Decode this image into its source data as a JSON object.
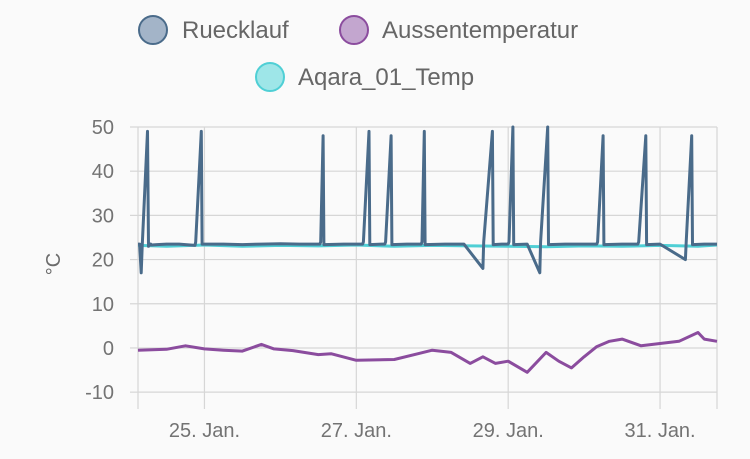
{
  "chart_data": {
    "type": "line",
    "ylabel": "°C",
    "ylim": [
      -12,
      50
    ],
    "yticks": [
      50,
      40,
      30,
      20,
      10,
      0,
      -10
    ],
    "xlim": [
      "2023-01-24T03:00",
      "2023-01-31T18:00"
    ],
    "xticks": [
      {
        "date": "2023-01-25",
        "label": "25. Jan."
      },
      {
        "date": "2023-01-27",
        "label": "27. Jan."
      },
      {
        "date": "2023-01-29",
        "label": "29. Jan."
      },
      {
        "date": "2023-01-31",
        "label": "31. Jan."
      }
    ],
    "grid": true,
    "legend_position": "top",
    "series": [
      {
        "name": "Ruecklauf",
        "color": "#4a6b8a",
        "fill": "#a3b4c8",
        "x": [
          "2023-01-24T03:00",
          "2023-01-24T03:30",
          "2023-01-24T04:00",
          "2023-01-24T04:20",
          "2023-01-24T06:00",
          "2023-01-24T06:20",
          "2023-01-24T07:00",
          "2023-01-24T07:15",
          "2023-01-24T09:00",
          "2023-01-24T12:00",
          "2023-01-24T16:00",
          "2023-01-24T21:00",
          "2023-01-24T21:15",
          "2023-01-24T23:00",
          "2023-01-24T23:15",
          "2023-01-25T06:00",
          "2023-01-25T12:00",
          "2023-01-25T18:00",
          "2023-01-26T00:00",
          "2023-01-26T06:00",
          "2023-01-26T12:30",
          "2023-01-26T12:45",
          "2023-01-26T13:30",
          "2023-01-26T13:45",
          "2023-01-26T20:00",
          "2023-01-27T02:00",
          "2023-01-27T02:15",
          "2023-01-27T04:00",
          "2023-01-27T04:15",
          "2023-01-27T08:00",
          "2023-01-27T09:00",
          "2023-01-27T09:15",
          "2023-01-27T11:00",
          "2023-01-27T11:15",
          "2023-01-27T16:00",
          "2023-01-27T20:30",
          "2023-01-27T20:45",
          "2023-01-27T21:30",
          "2023-01-27T21:45",
          "2023-01-28T04:00",
          "2023-01-28T10:00",
          "2023-01-28T16:00",
          "2023-01-28T16:15",
          "2023-01-28T19:00",
          "2023-01-28T19:15",
          "2023-01-28T22:00",
          "2023-01-29T00:00",
          "2023-01-29T00:15",
          "2023-01-29T01:30",
          "2023-01-29T01:45",
          "2023-01-29T06:00",
          "2023-01-29T10:00",
          "2023-01-29T10:15",
          "2023-01-29T12:30",
          "2023-01-29T12:45",
          "2023-01-29T18:00",
          "2023-01-30T00:00",
          "2023-01-30T04:00",
          "2023-01-30T04:15",
          "2023-01-30T06:00",
          "2023-01-30T06:15",
          "2023-01-30T12:00",
          "2023-01-30T17:00",
          "2023-01-30T17:15",
          "2023-01-30T19:30",
          "2023-01-30T19:45",
          "2023-01-31T00:00",
          "2023-01-31T08:00",
          "2023-01-31T08:15",
          "2023-01-31T10:00",
          "2023-01-31T10:15",
          "2023-01-31T14:00",
          "2023-01-31T18:00"
        ],
        "y": [
          23.5,
          23.5,
          17,
          23,
          49,
          23,
          23.5,
          23.3,
          23.4,
          23.5,
          23.5,
          23.2,
          24,
          49,
          23.5,
          23.5,
          23.4,
          23.5,
          23.6,
          23.5,
          23.5,
          24,
          48,
          23.4,
          23.5,
          23.5,
          24,
          49,
          23.4,
          23.5,
          23.5,
          24,
          48,
          23.4,
          23.5,
          23.5,
          24,
          49,
          23.4,
          23.5,
          23.5,
          18,
          24,
          49,
          23.4,
          23.5,
          23.5,
          24,
          50,
          23.4,
          23.5,
          17,
          24,
          50,
          23.4,
          23.5,
          23.5,
          23.5,
          24,
          48,
          23.4,
          23.5,
          23.5,
          24,
          48,
          23.4,
          23.5,
          20,
          24,
          48,
          23.4,
          23.5,
          23.5
        ]
      },
      {
        "name": "Aussentemperatur",
        "color": "#8b4c9e",
        "fill": "#c3a6cf",
        "x": [
          "2023-01-24T03:00",
          "2023-01-24T12:00",
          "2023-01-24T18:00",
          "2023-01-25T00:00",
          "2023-01-25T06:00",
          "2023-01-25T12:00",
          "2023-01-25T18:00",
          "2023-01-25T22:00",
          "2023-01-26T04:00",
          "2023-01-26T12:00",
          "2023-01-26T16:00",
          "2023-01-27T00:00",
          "2023-01-27T12:00",
          "2023-01-27T20:00",
          "2023-01-28T00:00",
          "2023-01-28T06:00",
          "2023-01-28T12:00",
          "2023-01-28T16:00",
          "2023-01-28T20:00",
          "2023-01-29T00:00",
          "2023-01-29T06:00",
          "2023-01-29T12:00",
          "2023-01-29T16:00",
          "2023-01-29T20:00",
          "2023-01-30T00:00",
          "2023-01-30T04:00",
          "2023-01-30T08:00",
          "2023-01-30T12:00",
          "2023-01-30T18:00",
          "2023-01-31T00:00",
          "2023-01-31T06:00",
          "2023-01-31T12:00",
          "2023-01-31T14:00",
          "2023-01-31T18:00"
        ],
        "y": [
          -0.5,
          -0.3,
          0.5,
          -0.2,
          -0.5,
          -0.7,
          0.8,
          -0.2,
          -0.6,
          -1.5,
          -1.3,
          -2.8,
          -2.6,
          -1.2,
          -0.5,
          -1.0,
          -3.5,
          -2.0,
          -3.5,
          -3.0,
          -5.5,
          -1.0,
          -3.0,
          -4.5,
          -2.0,
          0.3,
          1.5,
          2.0,
          0.5,
          1.0,
          1.5,
          3.5,
          2.0,
          1.5
        ]
      },
      {
        "name": "Aqara_01_Temp",
        "color": "#4fcfd5",
        "fill": "#9ee6e8",
        "x": [
          "2023-01-24T03:00",
          "2023-01-24T12:00",
          "2023-01-25T00:00",
          "2023-01-25T12:00",
          "2023-01-26T00:00",
          "2023-01-26T12:00",
          "2023-01-27T00:00",
          "2023-01-27T12:00",
          "2023-01-28T00:00",
          "2023-01-28T12:00",
          "2023-01-29T00:00",
          "2023-01-29T12:00",
          "2023-01-30T00:00",
          "2023-01-30T12:00",
          "2023-01-31T00:00",
          "2023-01-31T12:00",
          "2023-01-31T18:00"
        ],
        "y": [
          23.2,
          23.0,
          23.3,
          23.0,
          23.2,
          23.1,
          23.3,
          23.0,
          23.2,
          23.1,
          23.0,
          22.9,
          23.1,
          23.0,
          23.2,
          23.0,
          23.3
        ]
      }
    ]
  }
}
